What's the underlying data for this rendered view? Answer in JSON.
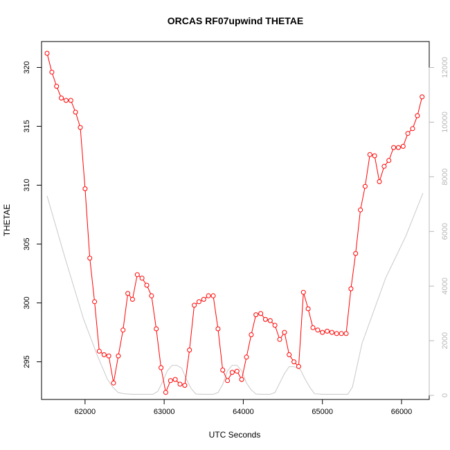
{
  "chart_data": {
    "type": "line",
    "title": "ORCAS RF07upwind THETAE",
    "xlabel": "UTC Seconds",
    "ylabel": "THETAE",
    "xlim": [
      61450,
      66350
    ],
    "ylim": [
      291.8,
      322.2
    ],
    "y2lim": [
      -150,
      12950
    ],
    "x_ticks": [
      62000,
      63000,
      64000,
      65000,
      66000
    ],
    "y_ticks": [
      295,
      300,
      305,
      310,
      315,
      320
    ],
    "y2_ticks": [
      0,
      2000,
      4000,
      6000,
      8000,
      10000,
      12000
    ],
    "colors": {
      "series": "#ff0000",
      "secondary": "#c8c8c8"
    },
    "series": [
      {
        "axis": "left",
        "marker": "open-circle",
        "x": [
          61520,
          61580,
          61640,
          61700,
          61760,
          61820,
          61880,
          61940,
          62000,
          62060,
          62120,
          62180,
          62240,
          62300,
          62360,
          62420,
          62480,
          62540,
          62600,
          62660,
          62720,
          62780,
          62840,
          62900,
          62960,
          63020,
          63080,
          63140,
          63200,
          63260,
          63320,
          63380,
          63440,
          63500,
          63560,
          63620,
          63680,
          63740,
          63800,
          63860,
          63920,
          63980,
          64040,
          64100,
          64160,
          64220,
          64280,
          64340,
          64400,
          64460,
          64520,
          64580,
          64640,
          64700,
          64760,
          64820,
          64880,
          64940,
          65000,
          65060,
          65120,
          65180,
          65240,
          65300,
          65360,
          65420,
          65480,
          65540,
          65600,
          65660,
          65720,
          65780,
          65840,
          65900,
          65960,
          66020,
          66080,
          66140,
          66200,
          66260
        ],
        "values": [
          321.2,
          319.6,
          318.4,
          317.4,
          317.2,
          317.2,
          316.2,
          314.9,
          309.7,
          303.8,
          300.1,
          295.9,
          295.6,
          295.5,
          293.2,
          295.5,
          297.7,
          300.8,
          300.3,
          302.4,
          302.1,
          301.5,
          300.6,
          297.8,
          294.5,
          292.4,
          293.4,
          293.5,
          293.1,
          293.0,
          296.0,
          299.8,
          300.1,
          300.3,
          300.6,
          300.6,
          297.8,
          294.3,
          293.4,
          294.1,
          294.2,
          293.5,
          295.4,
          297.3,
          299.0,
          299.1,
          298.6,
          298.5,
          298.1,
          296.9,
          297.5,
          295.6,
          295.0,
          294.6,
          300.9,
          299.5,
          297.9,
          297.7,
          297.5,
          297.6,
          297.5,
          297.4,
          297.4,
          297.4,
          301.2,
          304.2,
          307.9,
          309.9,
          312.6,
          312.5,
          310.3,
          311.6,
          312.1,
          313.2,
          313.2,
          313.3,
          314.4,
          314.8,
          315.9,
          317.5
        ]
      },
      {
        "axis": "right",
        "marker": "none",
        "x": [
          61520,
          61750,
          61980,
          62150,
          62280,
          62350,
          62420,
          62500,
          62600,
          62700,
          62780,
          62860,
          62920,
          62980,
          63040,
          63100,
          63160,
          63220,
          63280,
          63340,
          63400,
          63500,
          63620,
          63680,
          63740,
          63800,
          63860,
          63920,
          63980,
          64040,
          64100,
          64160,
          64240,
          64340,
          64400,
          64460,
          64520,
          64580,
          64640,
          64720,
          64780,
          64840,
          64900,
          65000,
          65100,
          65200,
          65320,
          65380,
          65500,
          65800,
          66050,
          66270
        ],
        "values": [
          7300,
          5000,
          2800,
          1500,
          600,
          300,
          100,
          60,
          40,
          40,
          40,
          40,
          150,
          500,
          900,
          1100,
          1100,
          1000,
          600,
          250,
          50,
          40,
          40,
          100,
          400,
          900,
          1100,
          1100,
          900,
          450,
          200,
          50,
          40,
          40,
          100,
          450,
          800,
          1050,
          1050,
          950,
          600,
          300,
          60,
          40,
          40,
          40,
          40,
          300,
          1900,
          4300,
          5800,
          7400
        ]
      }
    ]
  }
}
